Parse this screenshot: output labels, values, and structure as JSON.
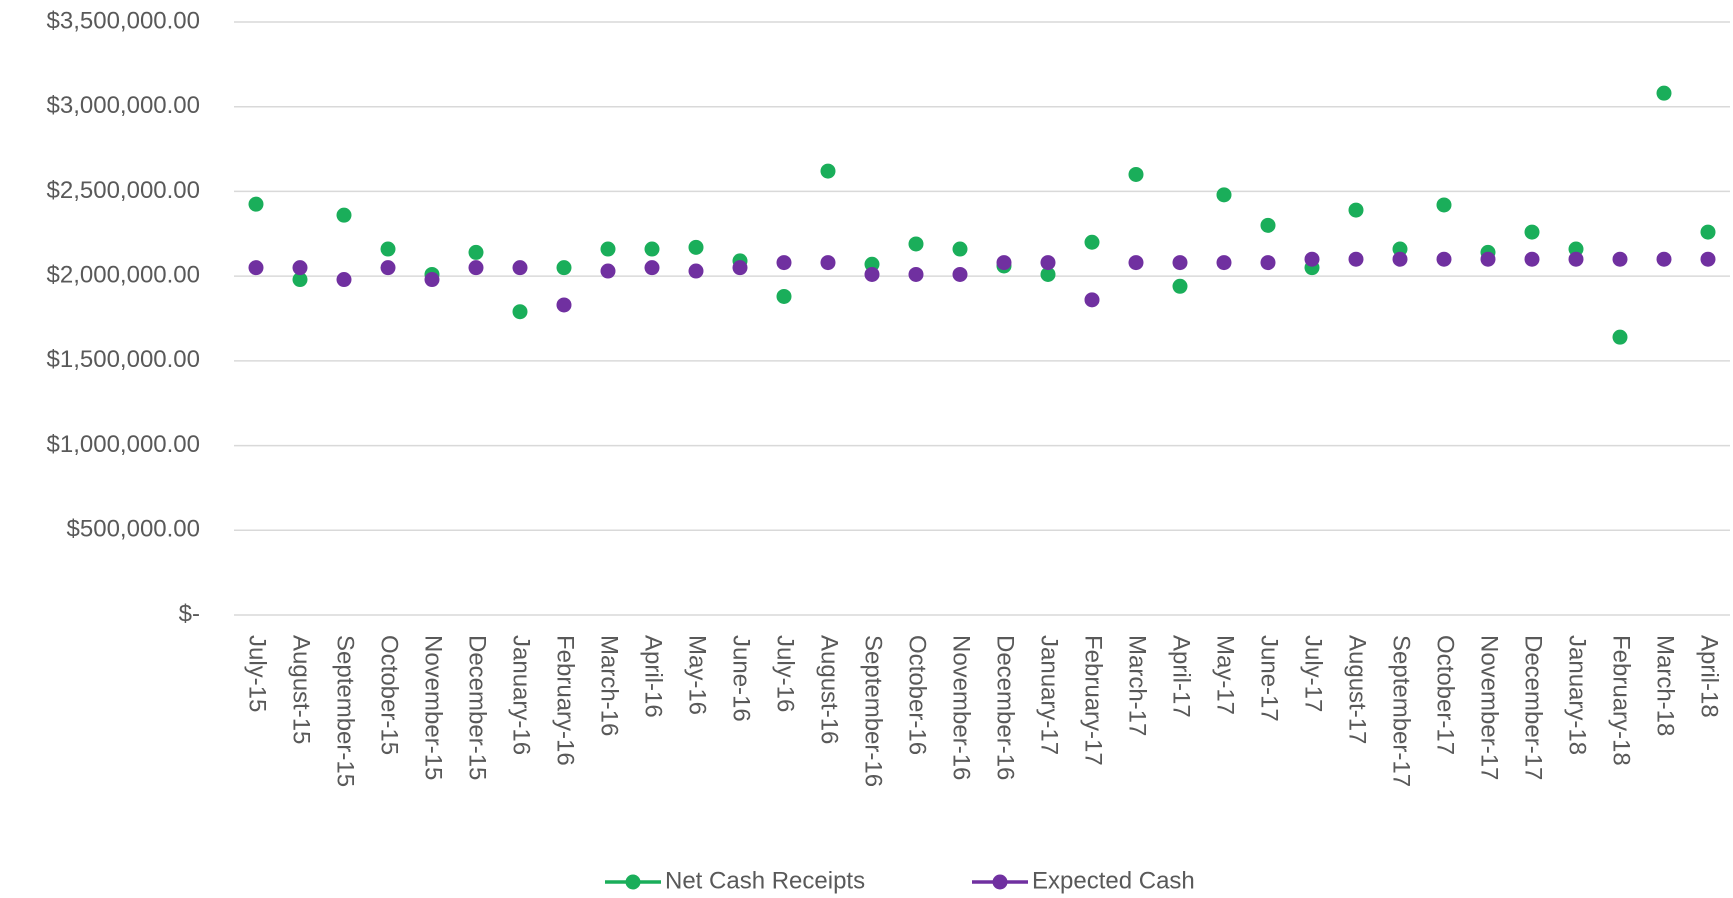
{
  "chart_data": {
    "type": "line",
    "categories": [
      "July-15",
      "August-15",
      "September-15",
      "October-15",
      "November-15",
      "December-15",
      "January-16",
      "February-16",
      "March-16",
      "April-16",
      "May-16",
      "June-16",
      "July-16",
      "August-16",
      "September-16",
      "October-16",
      "November-16",
      "December-16",
      "January-17",
      "February-17",
      "March-17",
      "April-17",
      "May-17",
      "June-17",
      "July-17",
      "August-17",
      "September-17",
      "October-17",
      "November-17",
      "December-17",
      "January-18",
      "February-18",
      "March-18",
      "April-18"
    ],
    "series": [
      {
        "name": "Net Cash Receipts",
        "color": "#1aae5a",
        "values": [
          2425000,
          1980000,
          2360000,
          2160000,
          2010000,
          2140000,
          1790000,
          2050000,
          2160000,
          2160000,
          2170000,
          2090000,
          1880000,
          2620000,
          2070000,
          2190000,
          2160000,
          2060000,
          2010000,
          2200000,
          2600000,
          1940000,
          2480000,
          2300000,
          2050000,
          2390000,
          2160000,
          2420000,
          2140000,
          2260000,
          2160000,
          1640000,
          3080000,
          2260000
        ]
      },
      {
        "name": "Expected Cash",
        "color": "#7030a0",
        "values": [
          2050000,
          2050000,
          1980000,
          2050000,
          1980000,
          2050000,
          2050000,
          1830000,
          2030000,
          2050000,
          2030000,
          2050000,
          2080000,
          2080000,
          2010000,
          2010000,
          2010000,
          2080000,
          2080000,
          1860000,
          2080000,
          2080000,
          2080000,
          2080000,
          2100000,
          2100000,
          2100000,
          2100000,
          2100000,
          2100000,
          2100000,
          2100000,
          2100000,
          2100000
        ]
      }
    ],
    "ylim": [
      0,
      3500000
    ],
    "yticks": [
      {
        "value": 0,
        "label": "$-"
      },
      {
        "value": 500000,
        "label": "$500,000.00"
      },
      {
        "value": 1000000,
        "label": "$1,000,000.00"
      },
      {
        "value": 1500000,
        "label": "$1,500,000.00"
      },
      {
        "value": 2000000,
        "label": "$2,000,000.00"
      },
      {
        "value": 2500000,
        "label": "$2,500,000.00"
      },
      {
        "value": 3000000,
        "label": "$3,000,000.00"
      },
      {
        "value": 3500000,
        "label": "$3,500,000.00"
      }
    ],
    "grid": true,
    "legend": "bottom"
  }
}
